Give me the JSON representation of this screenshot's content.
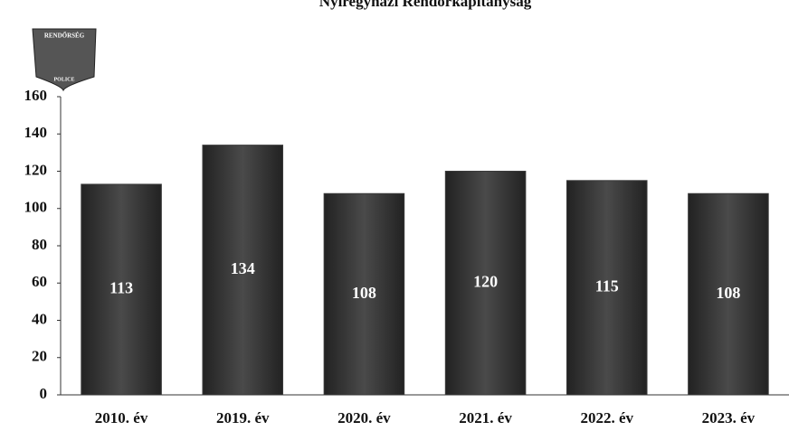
{
  "chart_data": {
    "type": "bar",
    "title": "Nyíregyházi Rendőrkapitányság",
    "logo_texts": [
      "RENDŐRSÉG",
      "POLICE"
    ],
    "categories": [
      "2010. év",
      "2019. év",
      "2020. év",
      "2021. év",
      "2022. év",
      "2023. év"
    ],
    "values": [
      113,
      134,
      108,
      120,
      115,
      108
    ],
    "color": "#3a3a3a",
    "ylim": [
      0,
      160
    ],
    "yticks": [
      0,
      20,
      40,
      60,
      80,
      100,
      120,
      140,
      160
    ],
    "grid": false
  }
}
